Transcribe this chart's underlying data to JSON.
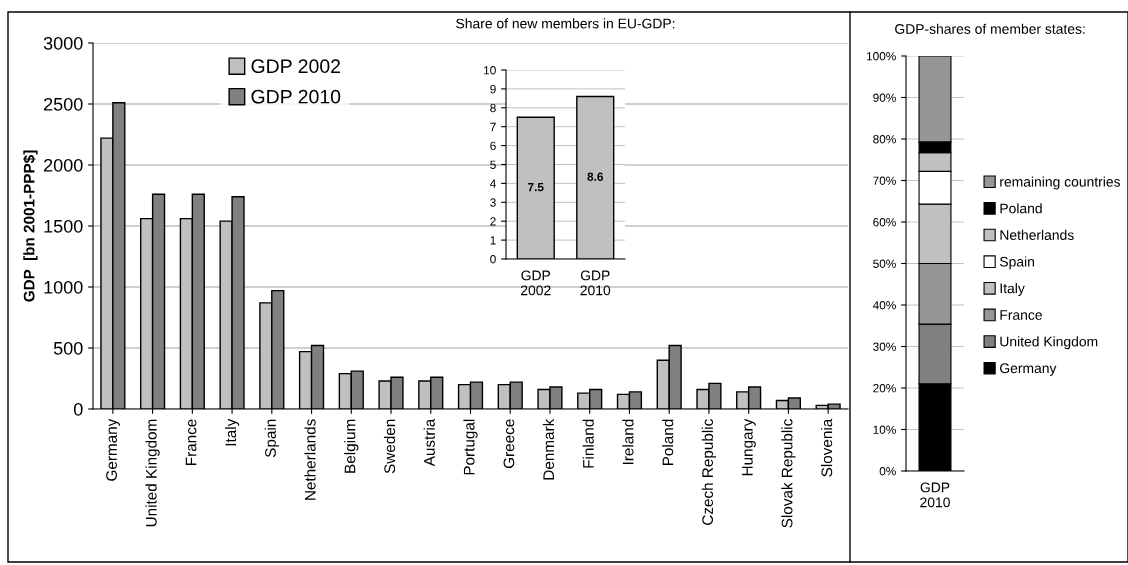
{
  "chart_data": [
    {
      "type": "bar",
      "ylabel": "GDP  [bn 2001-PPP$]",
      "categories": [
        "Germany",
        "United Kingdom",
        "France",
        "Italy",
        "Spain",
        "Netherlands",
        "Belgium",
        "Sweden",
        "Austria",
        "Portugal",
        "Greece",
        "Denmark",
        "Finland",
        "Ireland",
        "Poland",
        "Czech Republic",
        "Hungary",
        "Slovak Republic",
        "Slovenia"
      ],
      "series": [
        {
          "name": "GDP 2002",
          "color": "#c0c0c0",
          "values": [
            2220,
            1560,
            1560,
            1540,
            870,
            470,
            290,
            230,
            230,
            200,
            200,
            160,
            130,
            120,
            400,
            160,
            140,
            70,
            30
          ]
        },
        {
          "name": "GDP 2010",
          "color": "#808080",
          "values": [
            2510,
            1760,
            1760,
            1740,
            970,
            520,
            310,
            260,
            260,
            220,
            220,
            180,
            160,
            140,
            520,
            210,
            180,
            90,
            40
          ]
        }
      ],
      "ylim": [
        0,
        3000
      ],
      "yticks": [
        0,
        500,
        1000,
        1500,
        2000,
        2500,
        3000
      ],
      "grid": "y",
      "legend": "top left"
    },
    {
      "type": "bar",
      "title": "Share of new members in EU-GDP:",
      "categories": [
        "GDP 2002",
        "GDP 2010"
      ],
      "values": [
        7.5,
        8.6
      ],
      "color": "#c0c0c0",
      "data_labels": true,
      "ylim": [
        0,
        10
      ],
      "yticks": [
        0,
        1,
        2,
        3,
        4,
        5,
        6,
        7,
        8,
        9,
        10
      ],
      "grid": "y"
    },
    {
      "type": "bar",
      "title": "GDP-shares of member states:",
      "stacked": true,
      "categories": [
        "GDP 2010"
      ],
      "series": [
        {
          "name": "Germany",
          "color": "#000000",
          "values": [
            21
          ]
        },
        {
          "name": "United Kingdom",
          "color": "#808080",
          "values": [
            14.4
          ]
        },
        {
          "name": "France",
          "color": "#969696",
          "values": [
            14.6
          ]
        },
        {
          "name": "Italy",
          "color": "#c0c0c0",
          "values": [
            14.3
          ]
        },
        {
          "name": "Spain",
          "color": "#ffffff",
          "values": [
            7.9
          ]
        },
        {
          "name": "Netherlands",
          "color": "#c0c0c0",
          "values": [
            4.5
          ]
        },
        {
          "name": "Poland",
          "color": "#000000",
          "values": [
            2.6
          ]
        },
        {
          "name": "remaining countries",
          "color": "#969696",
          "values": [
            20.7
          ]
        }
      ],
      "ylim": [
        0,
        100
      ],
      "yticks": [
        {
          "value": 0,
          "label": "0%"
        },
        {
          "value": 10,
          "label": "10%"
        },
        {
          "value": 20,
          "label": "20%"
        },
        {
          "value": 30,
          "label": "30%"
        },
        {
          "value": 40,
          "label": "40%"
        },
        {
          "value": 50,
          "label": "50%"
        },
        {
          "value": 60,
          "label": "60%"
        },
        {
          "value": 70,
          "label": "70%"
        },
        {
          "value": 80,
          "label": "80%"
        },
        {
          "value": 90,
          "label": "90%"
        },
        {
          "value": 100,
          "label": "100%"
        }
      ],
      "grid": "y",
      "legend": "right"
    }
  ]
}
